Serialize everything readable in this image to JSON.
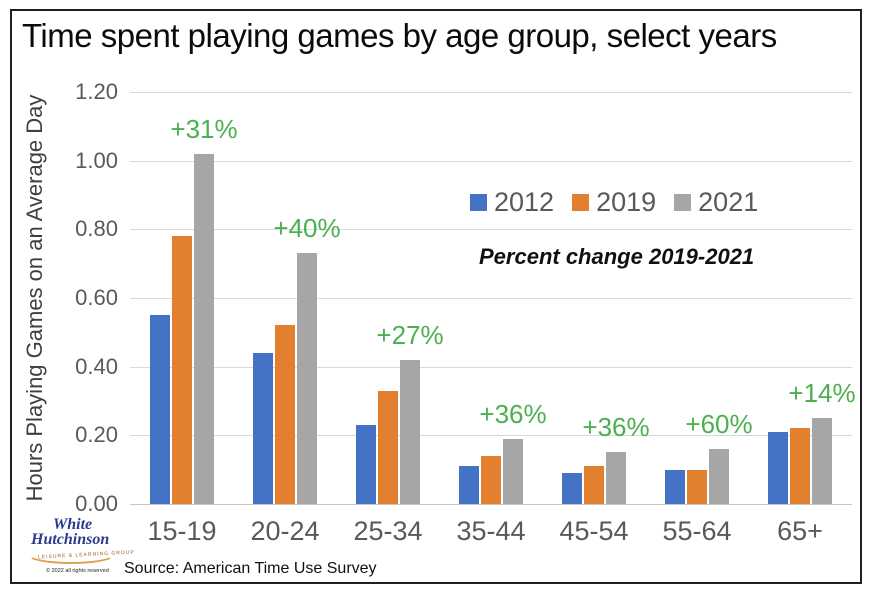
{
  "chart_data": {
    "type": "bar",
    "title": "Time spent playing games by age group, select years",
    "ylabel": "Hours Playing Games on an Average Day",
    "xlabel": "",
    "categories": [
      "15-19",
      "20-24",
      "25-34",
      "35-44",
      "45-54",
      "55-64",
      "65+"
    ],
    "series": [
      {
        "name": "2012",
        "color": "#4472C4",
        "values": [
          0.55,
          0.44,
          0.23,
          0.11,
          0.09,
          0.1,
          0.21
        ]
      },
      {
        "name": "2019",
        "color": "#E2802F",
        "values": [
          0.78,
          0.52,
          0.33,
          0.14,
          0.11,
          0.1,
          0.22
        ]
      },
      {
        "name": "2021",
        "color": "#A6A6A6",
        "values": [
          1.02,
          0.73,
          0.42,
          0.19,
          0.15,
          0.16,
          0.25
        ]
      }
    ],
    "percent_change_labels": [
      "+31%",
      "+40%",
      "+27%",
      "+36%",
      "+36%",
      "+60%",
      "+14%"
    ],
    "percent_change_color": "#4CAF50",
    "annotation": "Percent change 2019-2021",
    "ylim": [
      0,
      1.2
    ],
    "yticks": [
      "0.00",
      "0.20",
      "0.40",
      "0.60",
      "0.80",
      "1.00",
      "1.20"
    ],
    "grid": true,
    "legend_position": "inside-top-right"
  },
  "source": "Source: American Time Use Survey",
  "logo": {
    "line1": "White",
    "line2": "Hutchinson",
    "tagline": "LEISURE & LEARNING GROUP",
    "copyright": "© 2022 all rights reserved"
  }
}
